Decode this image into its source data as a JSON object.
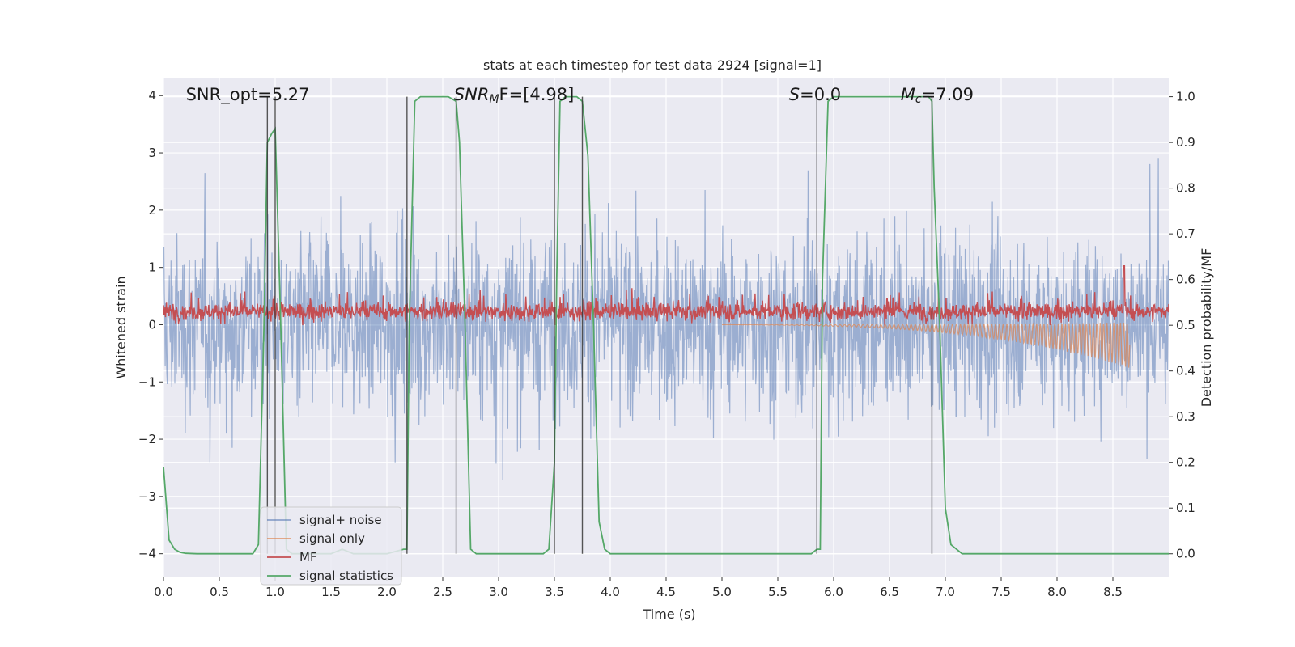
{
  "chart_data": {
    "type": "line",
    "title": "stats at each timestep for test data 2924 [signal=1]",
    "xlabel": "Time (s)",
    "ylabel": "Whitened strain",
    "y2label": "Detection probability/MF",
    "xlim": [
      0.0,
      9.0
    ],
    "ylim": [
      -4.4,
      4.3
    ],
    "y2lim": [
      -0.05,
      1.04
    ],
    "x_ticks": [
      "0.0",
      "0.5",
      "1.0",
      "1.5",
      "2.0",
      "2.5",
      "3.0",
      "3.5",
      "4.0",
      "4.5",
      "5.0",
      "5.5",
      "6.0",
      "6.5",
      "7.0",
      "7.5",
      "8.0",
      "8.5"
    ],
    "y_ticks": [
      "4",
      "3",
      "2",
      "1",
      "0",
      "−1",
      "−2",
      "−3",
      "−4"
    ],
    "y2_ticks": [
      "1.0",
      "0.9",
      "0.8",
      "0.7",
      "0.6",
      "0.5",
      "0.4",
      "0.3",
      "0.2",
      "0.1",
      "0.0"
    ],
    "grid": true,
    "legend_position": "bottom-left",
    "annotations": [
      {
        "prefix": "SNR_opt",
        "sub": "",
        "suffix": "=5.27",
        "italic": false,
        "x": 0.2
      },
      {
        "prefix": "SNR",
        "sub": "M",
        "suffix": "F=[4.98]",
        "italic": true,
        "x": 2.6
      },
      {
        "prefix": "S",
        "sub": "",
        "suffix": "=0.0",
        "italic": true,
        "x": 5.6
      },
      {
        "prefix": "M",
        "sub": "c",
        "suffix": "=7.09",
        "italic": true,
        "x": 6.6
      }
    ],
    "vertical_lines_x": [
      0.93,
      1.0,
      2.18,
      2.62,
      3.5,
      3.75,
      5.85,
      6.88
    ],
    "series": [
      {
        "name": "signal+ noise",
        "color": "#4c72b0",
        "axis": "left",
        "kind": "noise",
        "amplitude_range": [
          -3.6,
          3.4
        ]
      },
      {
        "name": "signal only",
        "color": "#dd8452",
        "axis": "left",
        "kind": "chirp",
        "start": 5.0,
        "end": 8.65,
        "min_value": -0.75
      },
      {
        "name": "MF",
        "color": "#c44e52",
        "axis": "right",
        "kind": "noise",
        "baseline": 0.53,
        "range": [
          0.5,
          0.6
        ],
        "peak": {
          "x": 8.6,
          "value": 0.63
        }
      },
      {
        "name": "signal statistics",
        "color": "#55a868",
        "axis": "right",
        "x": [
          0.0,
          0.05,
          0.1,
          0.15,
          0.2,
          0.3,
          0.5,
          0.8,
          0.85,
          0.9,
          0.93,
          0.97,
          1.0,
          1.05,
          1.1,
          1.15,
          1.3,
          1.5,
          1.6,
          1.7,
          2.0,
          2.15,
          2.18,
          2.2,
          2.25,
          2.3,
          2.4,
          2.55,
          2.62,
          2.65,
          2.7,
          2.75,
          2.8,
          3.0,
          3.4,
          3.45,
          3.5,
          3.52,
          3.55,
          3.6,
          3.7,
          3.75,
          3.8,
          3.85,
          3.9,
          3.95,
          4.0,
          5.0,
          5.8,
          5.85,
          5.88,
          5.9,
          5.95,
          6.0,
          6.8,
          6.85,
          6.88,
          6.9,
          6.95,
          7.0,
          7.05,
          7.1,
          7.15,
          7.2,
          8.0,
          9.0
        ],
        "y": [
          0.19,
          0.03,
          0.01,
          0.003,
          0.001,
          0.0,
          0.0,
          0.0,
          0.02,
          0.5,
          0.9,
          0.92,
          0.93,
          0.5,
          0.01,
          0.0,
          0.0,
          0.0,
          0.01,
          0.0,
          0.0,
          0.01,
          0.01,
          0.5,
          0.99,
          1.0,
          1.0,
          1.0,
          0.99,
          0.9,
          0.5,
          0.01,
          0.0,
          0.0,
          0.0,
          0.01,
          0.2,
          0.6,
          0.99,
          1.0,
          1.0,
          0.99,
          0.87,
          0.5,
          0.07,
          0.01,
          0.0,
          0.0,
          0.0,
          0.01,
          0.01,
          0.6,
          0.99,
          1.0,
          1.0,
          1.0,
          0.99,
          0.8,
          0.5,
          0.1,
          0.02,
          0.01,
          0.0,
          0.0,
          0.0,
          0.0
        ]
      }
    ]
  }
}
